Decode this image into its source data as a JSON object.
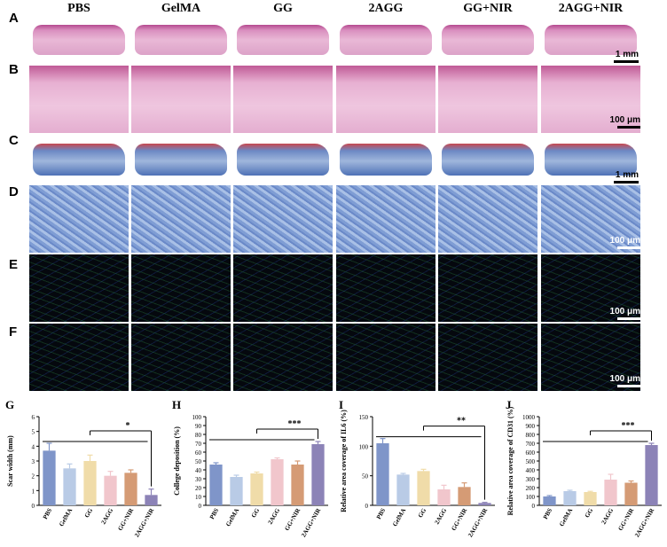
{
  "groups": [
    "PBS",
    "GelMA",
    "GG",
    "2AGG",
    "GG+NIR",
    "2AGG+NIR"
  ],
  "row_labels": [
    "A",
    "B",
    "C",
    "D",
    "E",
    "F"
  ],
  "scale_bars": {
    "mm": "1 mm",
    "um": "100 μm"
  },
  "colors": {
    "PBS": "#7f95c9",
    "GelMA": "#b9cbe6",
    "GG": "#f0dca9",
    "2AGG": "#f1c6cc",
    "GG+NIR": "#d59b75",
    "2AGG+NIR": "#8c83b7"
  },
  "chart_data": [
    {
      "type": "bar",
      "label": "G",
      "ylabel": "Scar width (mm)",
      "categories": [
        "PBS",
        "GelMA",
        "GG",
        "2AGG",
        "GG+NIR",
        "2AGG+NIR"
      ],
      "values": [
        3.7,
        2.5,
        3.0,
        2.0,
        2.2,
        0.7
      ],
      "errors": [
        0.5,
        0.3,
        0.4,
        0.3,
        0.2,
        0.4
      ],
      "ylim": [
        0,
        6
      ],
      "yticks": [
        0,
        1,
        2,
        3,
        4,
        5,
        6
      ],
      "sig": "*"
    },
    {
      "type": "bar",
      "label": "H",
      "ylabel": "College deposition (%)",
      "categories": [
        "PBS",
        "GelMA",
        "GG",
        "2AGG",
        "GG+NIR",
        "2AGG+NIR"
      ],
      "values": [
        46,
        32,
        36,
        52,
        46,
        69
      ],
      "errors": [
        2,
        2,
        1.5,
        1.5,
        4,
        3
      ],
      "ylim": [
        0,
        100
      ],
      "yticks": [
        0,
        10,
        20,
        30,
        40,
        50,
        60,
        70,
        80,
        90,
        100
      ],
      "sig": "***"
    },
    {
      "type": "bar",
      "label": "I",
      "ylabel": "Relative area coverage of IL6 (%)",
      "categories": [
        "PBS",
        "GelMA",
        "GG",
        "2AGG",
        "GG+NIR",
        "2AGG+NIR"
      ],
      "values": [
        105,
        52,
        58,
        27,
        31,
        4
      ],
      "errors": [
        8,
        2,
        3,
        7,
        7,
        1
      ],
      "ylim": [
        0,
        150
      ],
      "yticks": [
        0,
        50,
        100,
        150
      ],
      "sig": "**"
    },
    {
      "type": "bar",
      "label": "J",
      "ylabel": "Relative area coverage of CD31 (%)",
      "categories": [
        "PBS",
        "GelMA",
        "GG",
        "2AGG",
        "GG+NIR",
        "2AGG+NIR"
      ],
      "values": [
        100,
        160,
        150,
        290,
        255,
        680
      ],
      "errors": [
        10,
        10,
        8,
        60,
        20,
        20
      ],
      "ylim": [
        0,
        1000
      ],
      "yticks": [
        0,
        100,
        200,
        300,
        400,
        500,
        600,
        700,
        800,
        900,
        1000
      ],
      "sig": "***"
    }
  ]
}
